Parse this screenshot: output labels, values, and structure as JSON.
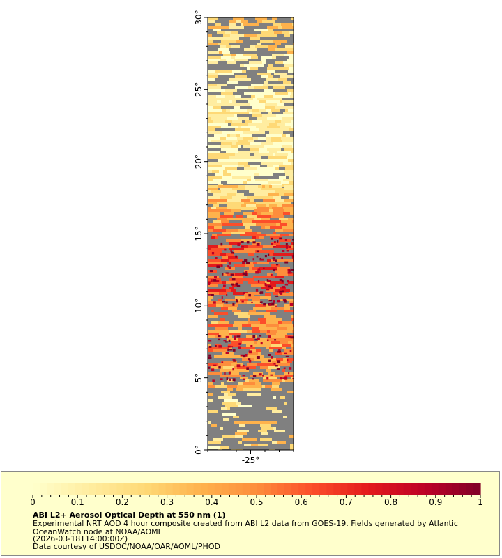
{
  "map": {
    "y_ticks": [
      {
        "value": 0,
        "label": "0°"
      },
      {
        "value": 5,
        "label": "5°"
      },
      {
        "value": 10,
        "label": "10°"
      },
      {
        "value": 15,
        "label": "15°"
      },
      {
        "value": 20,
        "label": "20°"
      },
      {
        "value": 25,
        "label": "25°"
      },
      {
        "value": 30,
        "label": "30°"
      }
    ],
    "x_ticks": [
      {
        "value": -25,
        "label": "-25°"
      }
    ],
    "lat_range": [
      0,
      30
    ],
    "lon_range": [
      -28,
      -22
    ],
    "missing_color": "#808080"
  },
  "colorbar": {
    "min": 0,
    "max": 1,
    "ticks": [
      "0",
      "0.1",
      "0.2",
      "0.3",
      "0.4",
      "0.5",
      "0.6",
      "0.7",
      "0.8",
      "0.9",
      "1"
    ],
    "colors": [
      "#ffffcc",
      "#ffeda0",
      "#fed976",
      "#feb24c",
      "#fd8d3c",
      "#fc4e2a",
      "#e31a1c",
      "#bd0026",
      "#800026"
    ]
  },
  "info": {
    "title": "ABI L2+ Aerosol Optical Depth at 550 nm (1)",
    "line1": "Experimental NRT AOD 4 hour composite created from ABI L2 data from GOES-19. Fields generated by Atlantic",
    "line2": "OceanWatch node at NOAA/AOML",
    "line3": "(2026-03-18T14:00:00Z)",
    "line4": "Data courtesy of USDOC/NOAA/OAR/AOML/PHOD"
  }
}
